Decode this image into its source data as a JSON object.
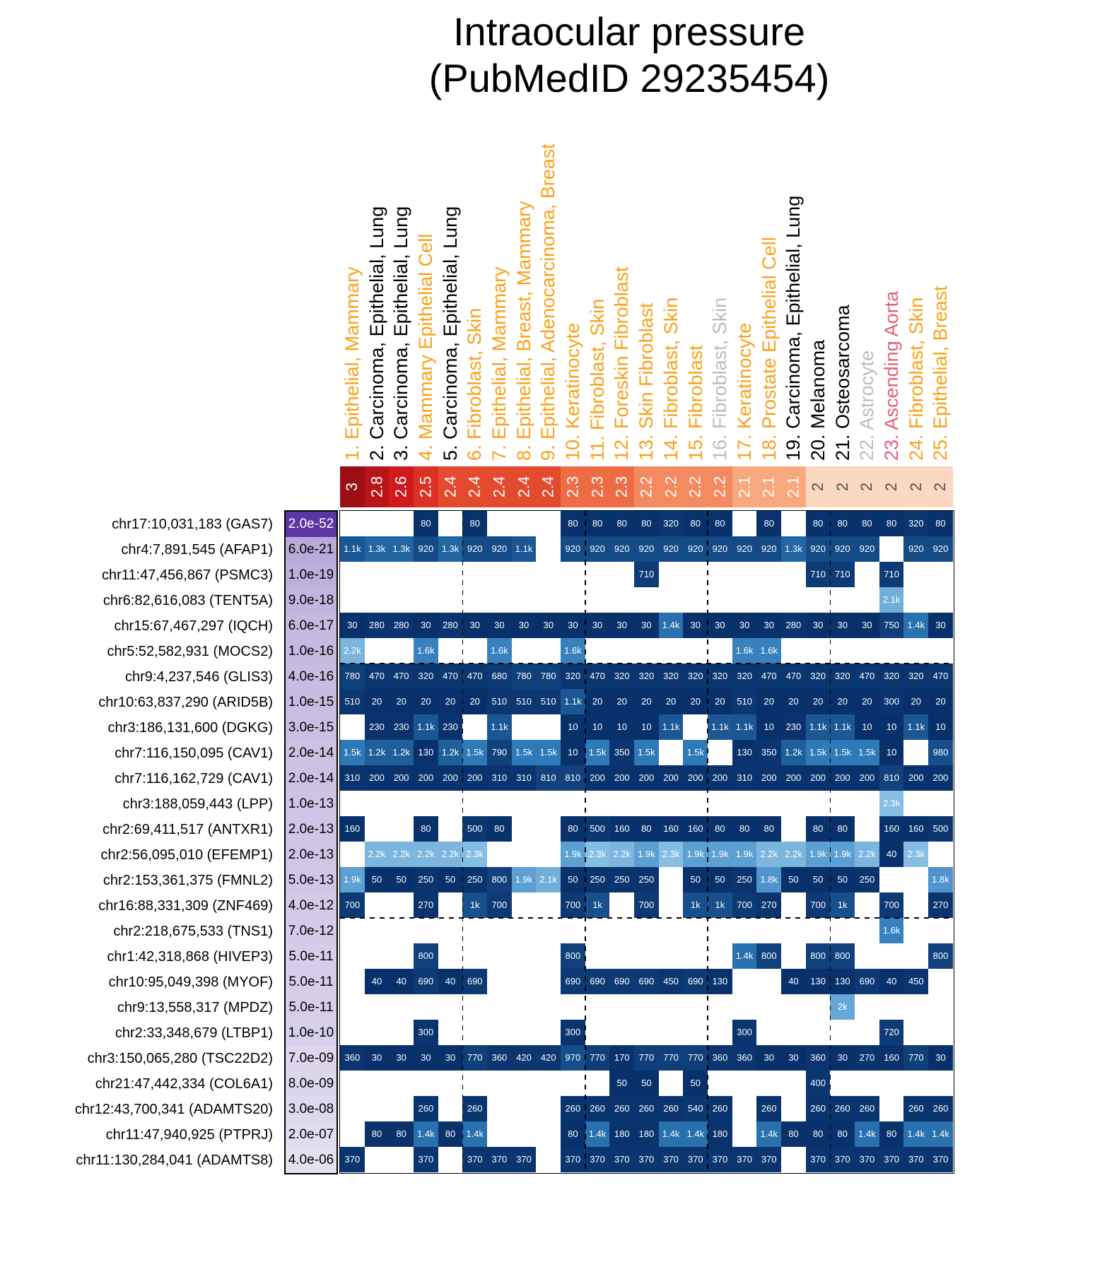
{
  "title": {
    "line1": "Intraocular pressure",
    "line2": "(PubMedID 29235454)"
  },
  "chart_data": {
    "type": "heatmap",
    "title": "Intraocular pressure (PubMedID 29235454)",
    "label_colors": {
      "orange": "#f7a11a",
      "black": "#000000",
      "gray": "#bcbcbc",
      "pink": "#e06078"
    },
    "score_colors": {
      "3": "#9c0d14",
      "2.8": "#b91419",
      "2.6": "#d01b1e",
      "2.5": "#db3124",
      "2.4": "#e44b2e",
      "2.3": "#ee6c44",
      "2.2": "#f48a5f",
      "2.1": "#f8a87e",
      "2": "#fcd7c1"
    },
    "score_text_colors": {
      "default": "#ffffff",
      "light_cell": "#4f4f4f"
    },
    "cell_color_stops": [
      [
        0,
        "#08306b"
      ],
      [
        700,
        "#0d3a74"
      ],
      [
        1000,
        "#17508c"
      ],
      [
        1300,
        "#2166a3"
      ],
      [
        1500,
        "#2e79b8"
      ],
      [
        1700,
        "#4189c6"
      ],
      [
        1900,
        "#5c9fd3"
      ],
      [
        2100,
        "#72aeda"
      ],
      [
        2300,
        "#86bde2"
      ]
    ],
    "pvalue_scale": {
      "dark": "#5b35a3",
      "light": "#e6e2f2"
    },
    "dashed_vertical_after_columns": [
      5,
      10,
      15,
      20
    ],
    "dashed_horizontal_after_rows": [
      6,
      16
    ],
    "columns": [
      {
        "label": "1. Epithelial, Mammary",
        "group": "orange",
        "score": "3"
      },
      {
        "label": "2. Carcinoma, Epithelial, Lung",
        "group": "black",
        "score": "2.8"
      },
      {
        "label": "3. Carcinoma, Epithelial, Lung",
        "group": "black",
        "score": "2.6"
      },
      {
        "label": "4. Mammary Epithelial Cell",
        "group": "orange",
        "score": "2.5"
      },
      {
        "label": "5. Carcinoma, Epithelial, Lung",
        "group": "black",
        "score": "2.4"
      },
      {
        "label": "6. Fibroblast, Skin",
        "group": "orange",
        "score": "2.4"
      },
      {
        "label": "7. Epithelial, Mammary",
        "group": "orange",
        "score": "2.4"
      },
      {
        "label": "8. Epithelial, Breast, Mammary",
        "group": "orange",
        "score": "2.4"
      },
      {
        "label": "9. Epithelial, Adenocarcinoma, Breast",
        "group": "orange",
        "score": "2.4"
      },
      {
        "label": "10. Keratinocyte",
        "group": "orange",
        "score": "2.3"
      },
      {
        "label": "11. Fibroblast, Skin",
        "group": "orange",
        "score": "2.3"
      },
      {
        "label": "12. Foreskin Fibroblast",
        "group": "orange",
        "score": "2.3"
      },
      {
        "label": "13. Skin Fibroblast",
        "group": "orange",
        "score": "2.2"
      },
      {
        "label": "14. Fibroblast, Skin",
        "group": "orange",
        "score": "2.2"
      },
      {
        "label": "15. Fibroblast",
        "group": "orange",
        "score": "2.2"
      },
      {
        "label": "16. Fibroblast, Skin",
        "group": "gray",
        "score": "2.2"
      },
      {
        "label": "17. Keratinocyte",
        "group": "orange",
        "score": "2.1"
      },
      {
        "label": "18. Prostate Epithelial Cell",
        "group": "orange",
        "score": "2.1"
      },
      {
        "label": "19. Carcinoma, Epithelial, Lung",
        "group": "black",
        "score": "2.1"
      },
      {
        "label": "20. Melanoma",
        "group": "black",
        "score": "2"
      },
      {
        "label": "21. Osteosarcoma",
        "group": "black",
        "score": "2"
      },
      {
        "label": "22. Astrocyte",
        "group": "gray",
        "score": "2"
      },
      {
        "label": "23. Ascending Aorta",
        "group": "pink",
        "score": "2"
      },
      {
        "label": "24. Fibroblast, Skin",
        "group": "orange",
        "score": "2"
      },
      {
        "label": "25. Epithelial, Breast",
        "group": "orange",
        "score": "2"
      }
    ],
    "rows": [
      {
        "label": "chr17:10,031,183 (GAS7)",
        "pvalue": "2.0e-52",
        "cells": [
          "",
          "",
          "",
          "80",
          "",
          "80",
          "",
          "",
          "",
          "80",
          "80",
          "80",
          "80",
          "320",
          "80",
          "80",
          "",
          "80",
          "",
          "80",
          "80",
          "80",
          "80",
          "320",
          "80"
        ]
      },
      {
        "label": "chr4:7,891,545 (AFAP1)",
        "pvalue": "6.0e-21",
        "cells": [
          "1.1k",
          "1.3k",
          "1.3k",
          "920",
          "1.3k",
          "920",
          "920",
          "1.1k",
          "",
          "920",
          "920",
          "920",
          "920",
          "920",
          "920",
          "920",
          "920",
          "920",
          "1.3k",
          "920",
          "920",
          "920",
          "",
          "920",
          "920"
        ]
      },
      {
        "label": "chr11:47,456,867 (PSMC3)",
        "pvalue": "1.0e-19",
        "cells": [
          "",
          "",
          "",
          "",
          "",
          "",
          "",
          "",
          "",
          "",
          "",
          "",
          "710",
          "",
          "",
          "",
          "",
          "",
          "",
          "710",
          "710",
          "",
          "710",
          "",
          ""
        ]
      },
      {
        "label": "chr6:82,616,083 (TENT5A)",
        "pvalue": "9.0e-18",
        "cells": [
          "",
          "",
          "",
          "",
          "",
          "",
          "",
          "",
          "",
          "",
          "",
          "",
          "",
          "",
          "",
          "",
          "",
          "",
          "",
          "",
          "",
          "",
          "2.1k",
          "",
          ""
        ]
      },
      {
        "label": "chr15:67,467,297 (IQCH)",
        "pvalue": "6.0e-17",
        "cells": [
          "30",
          "280",
          "280",
          "30",
          "280",
          "30",
          "30",
          "30",
          "30",
          "30",
          "30",
          "30",
          "30",
          "1.4k",
          "30",
          "30",
          "30",
          "30",
          "280",
          "30",
          "30",
          "30",
          "750",
          "1.4k",
          "30"
        ]
      },
      {
        "label": "chr5:52,582,931 (MOCS2)",
        "pvalue": "1.0e-16",
        "cells": [
          "2.2k",
          "",
          "",
          "1.6k",
          "",
          "",
          "1.6k",
          "",
          "",
          "1.6k",
          "",
          "",
          "",
          "",
          "",
          "",
          "1.6k",
          "1.6k",
          "",
          "",
          "",
          "",
          "",
          "",
          ""
        ]
      },
      {
        "label": "chr9:4,237,546 (GLIS3)",
        "pvalue": "4.0e-16",
        "cells": [
          "780",
          "470",
          "470",
          "320",
          "470",
          "470",
          "680",
          "780",
          "780",
          "320",
          "470",
          "320",
          "320",
          "320",
          "320",
          "320",
          "320",
          "470",
          "470",
          "320",
          "320",
          "470",
          "320",
          "320",
          "470"
        ]
      },
      {
        "label": "chr10:63,837,290 (ARID5B)",
        "pvalue": "1.0e-15",
        "cells": [
          "510",
          "20",
          "20",
          "20",
          "20",
          "20",
          "510",
          "510",
          "510",
          "1.1k",
          "20",
          "20",
          "20",
          "20",
          "20",
          "20",
          "510",
          "20",
          "20",
          "20",
          "20",
          "20",
          "300",
          "20",
          "20"
        ]
      },
      {
        "label": "chr3:186,131,600 (DGKG)",
        "pvalue": "3.0e-15",
        "cells": [
          "",
          "230",
          "230",
          "1.1k",
          "230",
          "",
          "1.1k",
          "",
          "",
          "10",
          "10",
          "10",
          "10",
          "1.1k",
          "",
          "1.1k",
          "1.1k",
          "10",
          "230",
          "1.1k",
          "1.1k",
          "10",
          "10",
          "1.1k",
          "10"
        ]
      },
      {
        "label": "chr7:116,150,095 (CAV1)",
        "pvalue": "2.0e-14",
        "cells": [
          "1.5k",
          "1.2k",
          "1.2k",
          "130",
          "1.2k",
          "1.5k",
          "790",
          "1.5k",
          "1.5k",
          "10",
          "1.5k",
          "350",
          "1.5k",
          "",
          "1.5k",
          "",
          "130",
          "350",
          "1.2k",
          "1.5k",
          "1.5k",
          "1.5k",
          "10",
          "",
          "980"
        ]
      },
      {
        "label": "chr7:116,162,729 (CAV1)",
        "pvalue": "2.0e-14",
        "cells": [
          "310",
          "200",
          "200",
          "200",
          "200",
          "200",
          "310",
          "310",
          "810",
          "810",
          "200",
          "200",
          "200",
          "200",
          "200",
          "200",
          "310",
          "200",
          "200",
          "200",
          "200",
          "200",
          "810",
          "200",
          "200"
        ]
      },
      {
        "label": "chr3:188,059,443 (LPP)",
        "pvalue": "1.0e-13",
        "cells": [
          "",
          "",
          "",
          "",
          "",
          "",
          "",
          "",
          "",
          "",
          "",
          "",
          "",
          "",
          "",
          "",
          "",
          "",
          "",
          "",
          "",
          "",
          "2.3k",
          "",
          ""
        ]
      },
      {
        "label": "chr2:69,411,517 (ANTXR1)",
        "pvalue": "2.0e-13",
        "cells": [
          "160",
          "",
          "",
          "80",
          "",
          "500",
          "80",
          "",
          "",
          "80",
          "500",
          "160",
          "80",
          "160",
          "160",
          "80",
          "80",
          "80",
          "",
          "80",
          "80",
          "",
          "160",
          "160",
          "500"
        ]
      },
      {
        "label": "chr2:56,095,010 (EFEMP1)",
        "pvalue": "2.0e-13",
        "cells": [
          "",
          "2.2k",
          "2.2k",
          "2.2k",
          "2.2k",
          "2.3k",
          "",
          "",
          "",
          "1.9k",
          "2.3k",
          "2.2k",
          "1.9k",
          "2.3k",
          "1.9k",
          "1.9k",
          "1.9k",
          "2.2k",
          "2.2k",
          "1.9k",
          "1.9k",
          "2.2k",
          "40",
          "2.3k",
          ""
        ]
      },
      {
        "label": "chr2:153,361,375 (FMNL2)",
        "pvalue": "5.0e-13",
        "cells": [
          "1.9k",
          "50",
          "50",
          "250",
          "50",
          "250",
          "800",
          "1.9k",
          "2.1k",
          "50",
          "250",
          "250",
          "250",
          "",
          "50",
          "50",
          "250",
          "1.8k",
          "50",
          "50",
          "50",
          "250",
          "",
          "",
          "1.8k"
        ]
      },
      {
        "label": "chr16:88,331,309 (ZNF469)",
        "pvalue": "4.0e-12",
        "cells": [
          "700",
          "",
          "",
          "270",
          "",
          "1k",
          "700",
          "",
          "",
          "700",
          "1k",
          "",
          "700",
          "",
          "1k",
          "1k",
          "700",
          "270",
          "",
          "700",
          "1k",
          "",
          "700",
          "",
          "270"
        ]
      },
      {
        "label": "chr2:218,675,533 (TNS1)",
        "pvalue": "7.0e-12",
        "cells": [
          "",
          "",
          "",
          "",
          "",
          "",
          "",
          "",
          "",
          "",
          "",
          "",
          "",
          "",
          "",
          "",
          "",
          "",
          "",
          "",
          "",
          "",
          "1.6k",
          "",
          ""
        ]
      },
      {
        "label": "chr1:42,318,868 (HIVEP3)",
        "pvalue": "5.0e-11",
        "cells": [
          "",
          "",
          "",
          "800",
          "",
          "",
          "",
          "",
          "",
          "800",
          "",
          "",
          "",
          "",
          "",
          "",
          "1.4k",
          "800",
          "",
          "800",
          "800",
          "",
          "",
          "",
          "800"
        ]
      },
      {
        "label": "chr10:95,049,398 (MYOF)",
        "pvalue": "5.0e-11",
        "cells": [
          "",
          "40",
          "40",
          "690",
          "40",
          "690",
          "",
          "",
          "",
          "690",
          "690",
          "690",
          "690",
          "450",
          "690",
          "130",
          "",
          "",
          "40",
          "130",
          "130",
          "690",
          "40",
          "450",
          ""
        ]
      },
      {
        "label": "chr9:13,558,317 (MPDZ)",
        "pvalue": "5.0e-11",
        "cells": [
          "",
          "",
          "",
          "",
          "",
          "",
          "",
          "",
          "",
          "",
          "",
          "",
          "",
          "",
          "",
          "",
          "",
          "",
          "",
          "",
          "2k",
          "",
          "",
          "",
          ""
        ]
      },
      {
        "label": "chr2:33,348,679 (LTBP1)",
        "pvalue": "1.0e-10",
        "cells": [
          "",
          "",
          "",
          "300",
          "",
          "",
          "",
          "",
          "",
          "300",
          "",
          "",
          "",
          "",
          "",
          "",
          "300",
          "",
          "",
          "",
          "",
          "",
          "720",
          "",
          ""
        ]
      },
      {
        "label": "chr3:150,065,280 (TSC22D2)",
        "pvalue": "7.0e-09",
        "cells": [
          "360",
          "30",
          "30",
          "30",
          "30",
          "770",
          "360",
          "420",
          "420",
          "970",
          "770",
          "170",
          "770",
          "770",
          "770",
          "360",
          "360",
          "30",
          "30",
          "360",
          "30",
          "270",
          "160",
          "770",
          "30"
        ]
      },
      {
        "label": "chr21:47,442,334 (COL6A1)",
        "pvalue": "8.0e-09",
        "cells": [
          "",
          "",
          "",
          "",
          "",
          "",
          "",
          "",
          "",
          "",
          "",
          "50",
          "50",
          "",
          "50",
          "",
          "",
          "",
          "",
          "400",
          "",
          "",
          "",
          "",
          ""
        ]
      },
      {
        "label": "chr12:43,700,341 (ADAMTS20)",
        "pvalue": "3.0e-08",
        "cells": [
          "",
          "",
          "",
          "260",
          "",
          "260",
          "",
          "",
          "",
          "260",
          "260",
          "260",
          "260",
          "260",
          "540",
          "260",
          "",
          "260",
          "",
          "260",
          "260",
          "260",
          "",
          "260",
          "260"
        ]
      },
      {
        "label": "chr11:47,940,925 (PTPRJ)",
        "pvalue": "2.0e-07",
        "cells": [
          "",
          "80",
          "80",
          "1.4k",
          "80",
          "1.4k",
          "",
          "",
          "",
          "80",
          "1.4k",
          "180",
          "180",
          "1.4k",
          "1.4k",
          "180",
          "",
          "1.4k",
          "80",
          "80",
          "80",
          "1.4k",
          "80",
          "1.4k",
          "1.4k"
        ]
      },
      {
        "label": "chr11:130,284,041 (ADAMTS8)",
        "pvalue": "4.0e-06",
        "cells": [
          "370",
          "",
          "",
          "370",
          "",
          "370",
          "370",
          "370",
          "",
          "370",
          "370",
          "370",
          "370",
          "370",
          "370",
          "370",
          "370",
          "370",
          "",
          "370",
          "370",
          "370",
          "370",
          "370",
          "370"
        ]
      }
    ]
  }
}
